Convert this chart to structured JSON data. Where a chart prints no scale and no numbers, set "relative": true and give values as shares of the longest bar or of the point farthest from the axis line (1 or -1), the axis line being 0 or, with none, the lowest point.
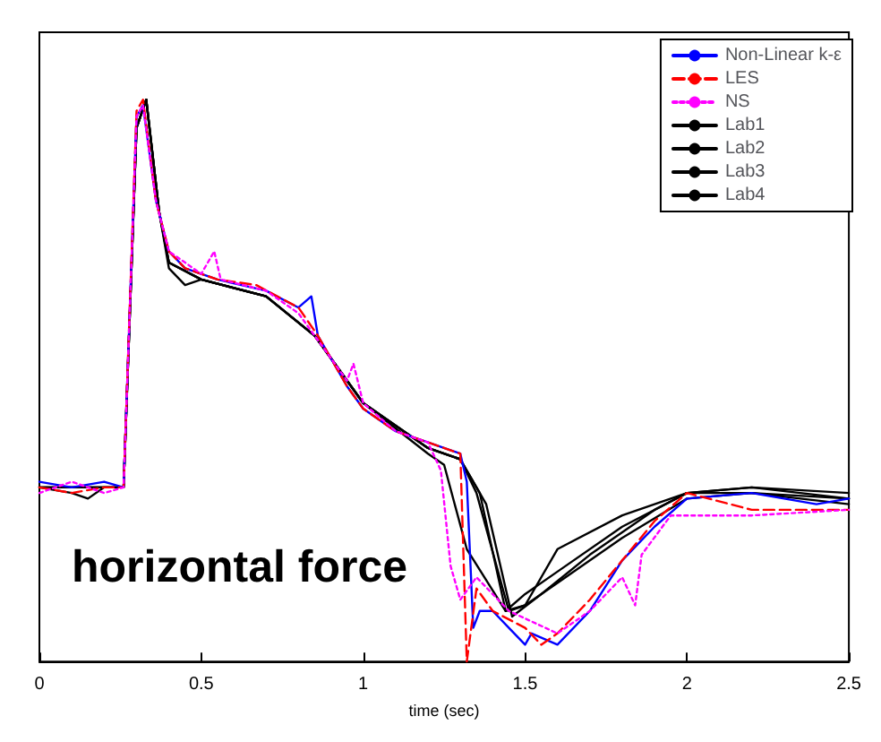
{
  "chart_data": {
    "type": "line",
    "relative": true,
    "xlabel": "time (sec)",
    "xlim": [
      0,
      2.5
    ],
    "xticks": [
      0,
      0.5,
      1,
      1.5,
      2,
      2.5
    ],
    "grid": false,
    "legend": "top right",
    "annotations": [
      "horizontal force"
    ],
    "series": [
      {
        "name": "Non-Linear k-ε",
        "color": "#0000ff",
        "line_style": "solid",
        "x": [
          0,
          0.1,
          0.2,
          0.26,
          0.3,
          0.32,
          0.36,
          0.4,
          0.45,
          0.55,
          0.7,
          0.8,
          0.84,
          0.86,
          0.95,
          1.0,
          1.1,
          1.2,
          1.3,
          1.32,
          1.34,
          1.36,
          1.4,
          1.45,
          1.5,
          1.52,
          1.6,
          1.7,
          1.8,
          1.9,
          2.0,
          2.2,
          2.4,
          2.5
        ],
        "values": [
          0.32,
          0.31,
          0.32,
          0.31,
          0.97,
          0.99,
          0.82,
          0.73,
          0.7,
          0.68,
          0.66,
          0.63,
          0.65,
          0.58,
          0.49,
          0.45,
          0.41,
          0.39,
          0.37,
          0.32,
          0.06,
          0.09,
          0.09,
          0.06,
          0.03,
          0.05,
          0.03,
          0.09,
          0.18,
          0.24,
          0.29,
          0.3,
          0.28,
          0.29
        ]
      },
      {
        "name": "LES",
        "color": "#ff0000",
        "line_style": "dashed",
        "x": [
          0,
          0.1,
          0.2,
          0.26,
          0.3,
          0.32,
          0.36,
          0.4,
          0.45,
          0.55,
          0.67,
          0.8,
          0.86,
          0.95,
          1.0,
          1.1,
          1.2,
          1.3,
          1.32,
          1.35,
          1.4,
          1.5,
          1.55,
          1.6,
          1.7,
          1.8,
          1.9,
          2.0,
          2.2,
          2.5
        ],
        "values": [
          0.31,
          0.3,
          0.31,
          0.31,
          0.98,
          1.0,
          0.82,
          0.73,
          0.7,
          0.68,
          0.67,
          0.63,
          0.58,
          0.49,
          0.45,
          0.41,
          0.39,
          0.37,
          0.0,
          0.13,
          0.09,
          0.06,
          0.03,
          0.05,
          0.11,
          0.18,
          0.25,
          0.3,
          0.27,
          0.27
        ]
      },
      {
        "name": "NS",
        "color": "#ff00ff",
        "line_style": "dotted",
        "x": [
          0,
          0.1,
          0.2,
          0.26,
          0.3,
          0.32,
          0.36,
          0.4,
          0.5,
          0.54,
          0.56,
          0.7,
          0.8,
          0.95,
          0.97,
          1.0,
          1.1,
          1.2,
          1.24,
          1.27,
          1.3,
          1.35,
          1.45,
          1.6,
          1.7,
          1.8,
          1.84,
          1.86,
          1.95,
          2.2,
          2.5
        ],
        "values": [
          0.3,
          0.32,
          0.3,
          0.31,
          0.97,
          0.99,
          0.82,
          0.73,
          0.69,
          0.73,
          0.68,
          0.66,
          0.62,
          0.5,
          0.53,
          0.46,
          0.41,
          0.39,
          0.34,
          0.17,
          0.11,
          0.15,
          0.09,
          0.05,
          0.09,
          0.15,
          0.1,
          0.19,
          0.26,
          0.26,
          0.27
        ]
      },
      {
        "name": "Lab1",
        "color": "#000000",
        "line_style": "solid",
        "x": [
          0,
          0.1,
          0.15,
          0.2,
          0.26,
          0.3,
          0.33,
          0.37,
          0.4,
          0.5,
          0.7,
          0.85,
          1.0,
          1.2,
          1.3,
          1.35,
          1.45,
          1.5,
          1.6,
          1.8,
          2.0,
          2.2,
          2.5
        ],
        "values": [
          0.31,
          0.3,
          0.29,
          0.31,
          0.31,
          0.95,
          1.0,
          0.8,
          0.71,
          0.68,
          0.65,
          0.58,
          0.46,
          0.38,
          0.36,
          0.3,
          0.09,
          0.1,
          0.2,
          0.26,
          0.3,
          0.31,
          0.29
        ]
      },
      {
        "name": "Lab2",
        "color": "#000000",
        "line_style": "solid",
        "x": [
          0,
          0.26,
          0.3,
          0.33,
          0.37,
          0.4,
          0.5,
          0.7,
          0.85,
          1.0,
          1.2,
          1.3,
          1.36,
          1.44,
          1.5,
          1.6,
          1.8,
          2.0,
          2.2,
          2.5
        ],
        "values": [
          0.31,
          0.31,
          0.95,
          1.0,
          0.8,
          0.71,
          0.68,
          0.65,
          0.58,
          0.46,
          0.38,
          0.36,
          0.3,
          0.09,
          0.12,
          0.16,
          0.24,
          0.3,
          0.3,
          0.28
        ]
      },
      {
        "name": "Lab3",
        "color": "#000000",
        "line_style": "solid",
        "x": [
          0,
          0.26,
          0.3,
          0.33,
          0.37,
          0.4,
          0.5,
          0.7,
          0.85,
          1.0,
          1.2,
          1.25,
          1.32,
          1.44,
          1.5,
          1.6,
          1.8,
          2.0,
          2.2,
          2.5
        ],
        "values": [
          0.31,
          0.31,
          0.95,
          1.0,
          0.8,
          0.71,
          0.68,
          0.65,
          0.58,
          0.46,
          0.37,
          0.35,
          0.2,
          0.09,
          0.1,
          0.14,
          0.22,
          0.29,
          0.3,
          0.29
        ]
      },
      {
        "name": "Lab4",
        "color": "#000000",
        "line_style": "solid",
        "x": [
          0,
          0.26,
          0.3,
          0.33,
          0.37,
          0.4,
          0.45,
          0.5,
          0.7,
          0.85,
          1.0,
          1.2,
          1.3,
          1.38,
          1.46,
          1.55,
          1.7,
          1.9,
          2.0,
          2.2,
          2.5
        ],
        "values": [
          0.31,
          0.31,
          0.95,
          1.0,
          0.8,
          0.7,
          0.67,
          0.68,
          0.65,
          0.58,
          0.46,
          0.38,
          0.36,
          0.28,
          0.08,
          0.12,
          0.19,
          0.27,
          0.3,
          0.31,
          0.3
        ]
      }
    ]
  }
}
